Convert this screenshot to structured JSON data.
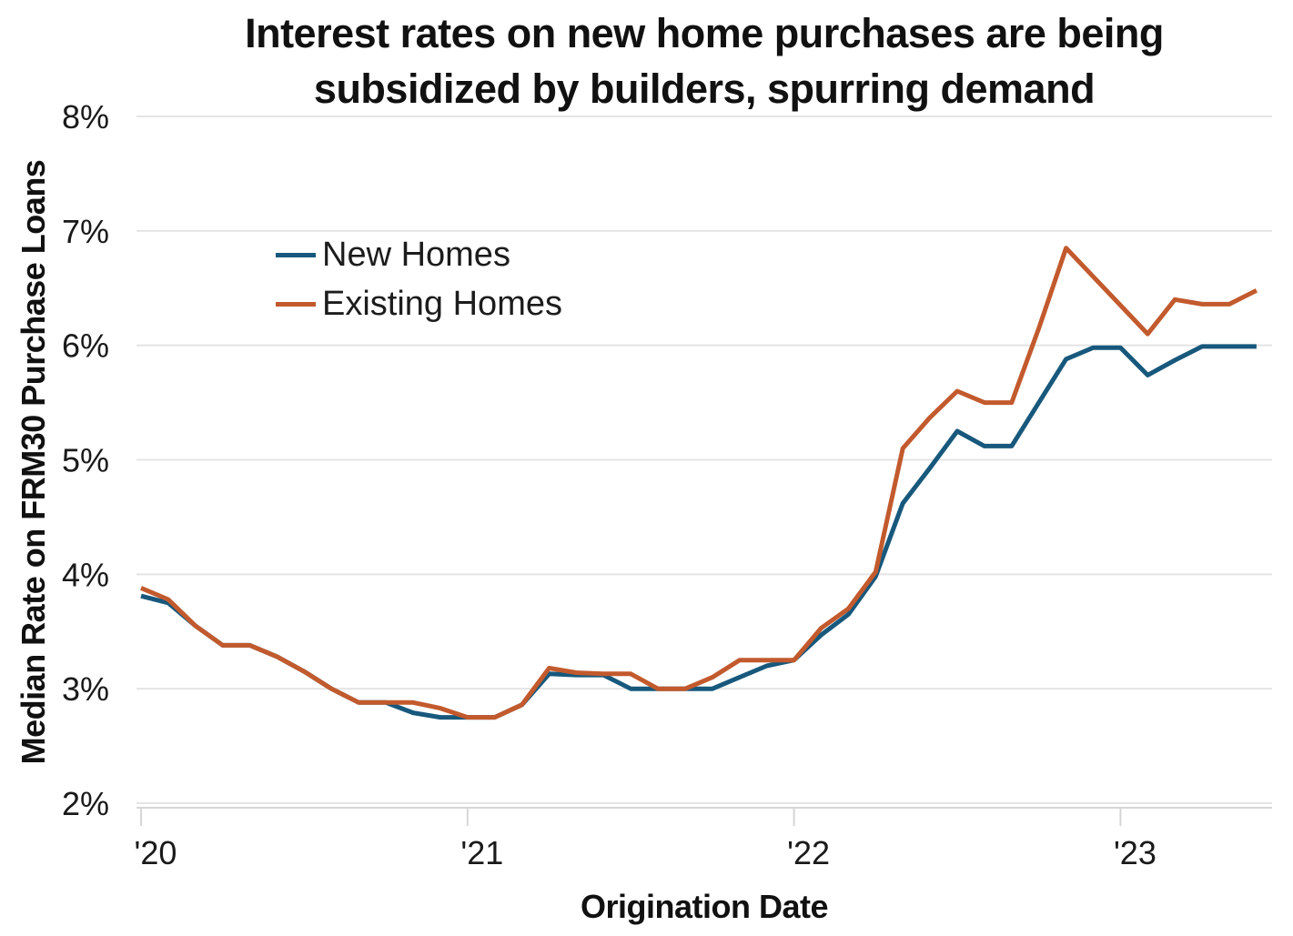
{
  "title": {
    "line1": "Interest rates on new home purchases are being",
    "line2": "subsidized by builders, spurring demand"
  },
  "chart_data": {
    "type": "line",
    "title": "Interest rates on new home purchases are being subsidized by builders, spurring demand",
    "xlabel": "Origination Date",
    "ylabel": "Median Rate on FRM30 Purchase Loans",
    "ylim": [
      2,
      8
    ],
    "grid": "horizontal",
    "legend_position": "upper-left-inside",
    "y_ticks": [
      2,
      3,
      4,
      5,
      6,
      7,
      8
    ],
    "y_tick_labels": [
      "2%",
      "3%",
      "4%",
      "5%",
      "6%",
      "7%",
      "8%"
    ],
    "x_tick_labels": [
      "'20",
      "'21",
      "'22",
      "'23"
    ],
    "x_tick_month_indices": [
      0,
      12,
      24,
      36
    ],
    "x": [
      "2020-01",
      "2020-02",
      "2020-03",
      "2020-04",
      "2020-05",
      "2020-06",
      "2020-07",
      "2020-08",
      "2020-09",
      "2020-10",
      "2020-11",
      "2020-12",
      "2021-01",
      "2021-02",
      "2021-03",
      "2021-04",
      "2021-05",
      "2021-06",
      "2021-07",
      "2021-08",
      "2021-09",
      "2021-10",
      "2021-11",
      "2021-12",
      "2022-01",
      "2022-02",
      "2022-03",
      "2022-04",
      "2022-05",
      "2022-06",
      "2022-07",
      "2022-08",
      "2022-09",
      "2022-10",
      "2022-11",
      "2022-12",
      "2023-01",
      "2023-02",
      "2023-03",
      "2023-04",
      "2023-05",
      "2023-06"
    ],
    "series": [
      {
        "name": "New Homes",
        "color": "#17587C",
        "values": [
          3.81,
          3.75,
          3.55,
          3.38,
          3.38,
          3.28,
          3.15,
          3.0,
          2.88,
          2.88,
          2.79,
          2.75,
          2.75,
          2.75,
          2.86,
          3.13,
          3.12,
          3.12,
          3.0,
          3.0,
          3.0,
          3.0,
          3.1,
          3.2,
          3.25,
          3.47,
          3.65,
          3.98,
          4.62,
          4.93,
          5.25,
          5.12,
          5.12,
          5.5,
          5.88,
          5.98,
          5.98,
          5.74,
          5.87,
          5.99,
          5.99,
          5.99
        ]
      },
      {
        "name": "Existing Homes",
        "color": "#C25A2D",
        "values": [
          3.88,
          3.78,
          3.55,
          3.38,
          3.38,
          3.28,
          3.15,
          3.0,
          2.88,
          2.88,
          2.88,
          2.83,
          2.75,
          2.75,
          2.86,
          3.18,
          3.14,
          3.13,
          3.13,
          3.0,
          3.0,
          3.1,
          3.25,
          3.25,
          3.25,
          3.53,
          3.7,
          4.02,
          5.1,
          5.37,
          5.6,
          5.5,
          5.5,
          6.15,
          6.85,
          6.6,
          6.35,
          6.1,
          6.4,
          6.36,
          6.36,
          6.48
        ]
      }
    ]
  },
  "colors": {
    "new_homes": "#17587C",
    "existing_homes": "#C25A2D",
    "gridline": "#e4e4e4",
    "axis": "#d6d6d6",
    "text": "#1a1a1a"
  }
}
